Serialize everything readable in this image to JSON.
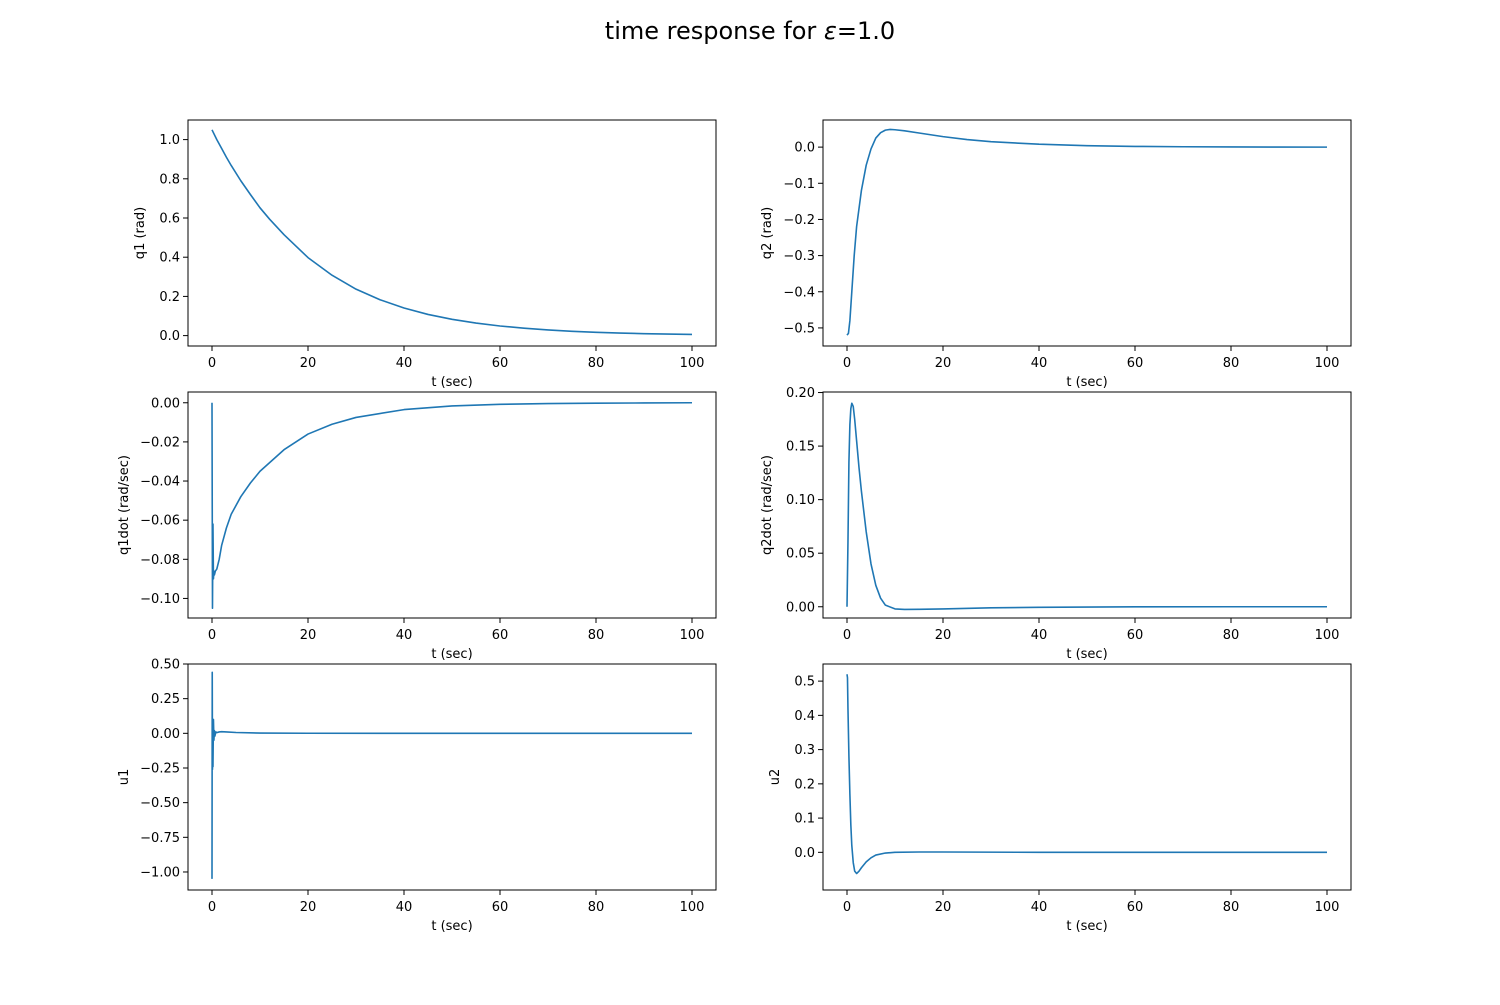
{
  "figure": {
    "title_prefix": "time response for ",
    "title_symbol": "ε",
    "title_suffix": "=1.0"
  },
  "colors": {
    "line": "#1f77b4",
    "frame": "#000000"
  },
  "chart_data": [
    {
      "id": "q1",
      "type": "line",
      "title": "",
      "xlabel": "t (sec)",
      "ylabel": "q1 (rad)",
      "xlim": [
        -5,
        105
      ],
      "ylim": [
        -0.053,
        1.1
      ],
      "xticks": [
        0,
        20,
        40,
        60,
        80,
        100
      ],
      "yticks": [
        0.0,
        0.2,
        0.4,
        0.6,
        0.8,
        1.0
      ],
      "ytick_labels": [
        "0.0",
        "0.2",
        "0.4",
        "0.6",
        "0.8",
        "1.0"
      ],
      "series": [
        {
          "x": [
            0,
            1,
            2,
            3,
            4,
            6,
            8,
            10,
            12,
            15,
            20,
            25,
            30,
            35,
            40,
            45,
            50,
            55,
            60,
            65,
            70,
            75,
            80,
            85,
            90,
            95,
            100
          ],
          "y": [
            1.05,
            1.0,
            0.955,
            0.91,
            0.868,
            0.79,
            0.72,
            0.652,
            0.594,
            0.515,
            0.398,
            0.308,
            0.237,
            0.183,
            0.141,
            0.108,
            0.083,
            0.064,
            0.049,
            0.038,
            0.029,
            0.022,
            0.017,
            0.013,
            0.01,
            0.008,
            0.006
          ]
        }
      ]
    },
    {
      "id": "q2",
      "type": "line",
      "title": "",
      "xlabel": "t (sec)",
      "ylabel": "q2 (rad)",
      "xlim": [
        -5,
        105
      ],
      "ylim": [
        -0.55,
        0.075
      ],
      "xticks": [
        0,
        20,
        40,
        60,
        80,
        100
      ],
      "yticks": [
        -0.5,
        -0.4,
        -0.3,
        -0.2,
        -0.1,
        0.0
      ],
      "ytick_labels": [
        "−0.5",
        "−0.4",
        "−0.3",
        "−0.2",
        "−0.1",
        "0.0"
      ],
      "series": [
        {
          "x": [
            0,
            0.3,
            0.6,
            1,
            1.5,
            2,
            3,
            4,
            5,
            6,
            7,
            8,
            9,
            10,
            12,
            15,
            20,
            25,
            30,
            40,
            50,
            60,
            70,
            80,
            90,
            100
          ],
          "y": [
            -0.52,
            -0.515,
            -0.48,
            -0.4,
            -0.3,
            -0.22,
            -0.12,
            -0.05,
            -0.005,
            0.025,
            0.04,
            0.047,
            0.049,
            0.048,
            0.045,
            0.039,
            0.029,
            0.021,
            0.015,
            0.008,
            0.004,
            0.002,
            0.001,
            0.0005,
            0.0002,
            0.0
          ]
        }
      ]
    },
    {
      "id": "q1dot",
      "type": "line",
      "title": "",
      "xlabel": "t (sec)",
      "ylabel": "q1dot (rad/sec)",
      "xlim": [
        -5,
        105
      ],
      "ylim": [
        -0.11,
        0.0055
      ],
      "xticks": [
        0,
        20,
        40,
        60,
        80,
        100
      ],
      "yticks": [
        -0.1,
        -0.08,
        -0.06,
        -0.04,
        -0.02,
        0.0
      ],
      "ytick_labels": [
        "−0.10",
        "−0.08",
        "−0.06",
        "−0.04",
        "−0.02",
        "0.00"
      ],
      "series": [
        {
          "x": [
            0,
            0.1,
            0.2,
            0.3,
            0.4,
            0.5,
            0.7,
            1,
            1.5,
            2,
            3,
            4,
            6,
            8,
            10,
            15,
            20,
            25,
            30,
            40,
            50,
            60,
            70,
            80,
            90,
            100
          ],
          "y": [
            0.0,
            -0.105,
            -0.062,
            -0.09,
            -0.086,
            -0.088,
            -0.086,
            -0.085,
            -0.08,
            -0.073,
            -0.064,
            -0.057,
            -0.048,
            -0.041,
            -0.035,
            -0.024,
            -0.016,
            -0.011,
            -0.0075,
            -0.0035,
            -0.0016,
            -0.0008,
            -0.0004,
            -0.0002,
            -0.0001,
            0.0
          ]
        }
      ]
    },
    {
      "id": "q2dot",
      "type": "line",
      "title": "",
      "xlabel": "t (sec)",
      "ylabel": "q2dot (rad/sec)",
      "xlim": [
        -5,
        105
      ],
      "ylim": [
        -0.0105,
        0.2005
      ],
      "xticks": [
        0,
        20,
        40,
        60,
        80,
        100
      ],
      "yticks": [
        0.0,
        0.05,
        0.1,
        0.15,
        0.2
      ],
      "ytick_labels": [
        "0.00",
        "0.05",
        "0.10",
        "0.15",
        "0.20"
      ],
      "series": [
        {
          "x": [
            0,
            0.2,
            0.4,
            0.6,
            0.8,
            1,
            1.3,
            1.6,
            2,
            2.5,
            3,
            4,
            5,
            6,
            7,
            8,
            10,
            12,
            15,
            20,
            30,
            40,
            60,
            80,
            100
          ],
          "y": [
            0.0,
            0.06,
            0.135,
            0.17,
            0.185,
            0.19,
            0.187,
            0.175,
            0.155,
            0.13,
            0.108,
            0.07,
            0.04,
            0.02,
            0.008,
            0.0015,
            -0.002,
            -0.0025,
            -0.0024,
            -0.002,
            -0.001,
            -0.0005,
            -0.0001,
            0.0,
            0.0
          ]
        }
      ]
    },
    {
      "id": "u1",
      "type": "line",
      "title": "",
      "xlabel": "t (sec)",
      "ylabel": "u1",
      "xlim": [
        -5,
        105
      ],
      "ylim": [
        -1.13,
        0.5
      ],
      "xticks": [
        0,
        20,
        40,
        60,
        80,
        100
      ],
      "yticks": [
        -1.0,
        -0.75,
        -0.5,
        -0.25,
        0.0,
        0.25,
        0.5
      ],
      "ytick_labels": [
        "−1.00",
        "−0.75",
        "−0.50",
        "−0.25",
        "0.00",
        "0.25",
        "0.50"
      ],
      "series": [
        {
          "x": [
            0,
            0.05,
            0.1,
            0.15,
            0.2,
            0.3,
            0.4,
            0.5,
            0.6,
            0.8,
            1,
            1.5,
            2,
            3,
            5,
            10,
            20,
            40,
            60,
            80,
            100
          ],
          "y": [
            -1.05,
            0.44,
            -0.26,
            0.09,
            -0.24,
            0.1,
            -0.05,
            0.02,
            -0.02,
            0.01,
            0.005,
            0.01,
            0.012,
            0.01,
            0.006,
            0.002,
            0.0005,
            0.0001,
            0.0,
            0.0,
            0.0
          ]
        }
      ]
    },
    {
      "id": "u2",
      "type": "line",
      "title": "",
      "xlabel": "t (sec)",
      "ylabel": "u2",
      "xlim": [
        -5,
        105
      ],
      "ylim": [
        -0.11,
        0.55
      ],
      "xticks": [
        0,
        20,
        40,
        60,
        80,
        100
      ],
      "yticks": [
        0.0,
        0.1,
        0.2,
        0.3,
        0.4,
        0.5
      ],
      "ytick_labels": [
        "0.0",
        "0.1",
        "0.2",
        "0.3",
        "0.4",
        "0.5"
      ],
      "series": [
        {
          "x": [
            0,
            0.1,
            0.2,
            0.4,
            0.6,
            0.8,
            1,
            1.3,
            1.6,
            2,
            2.5,
            3,
            4,
            5,
            6,
            8,
            10,
            15,
            20,
            40,
            60,
            80,
            100
          ],
          "y": [
            0.52,
            0.51,
            0.42,
            0.28,
            0.17,
            0.08,
            0.02,
            -0.03,
            -0.055,
            -0.062,
            -0.055,
            -0.045,
            -0.028,
            -0.016,
            -0.008,
            -0.002,
            0.0,
            0.001,
            0.001,
            0.0,
            0.0,
            0.0,
            0.0
          ]
        }
      ]
    }
  ]
}
